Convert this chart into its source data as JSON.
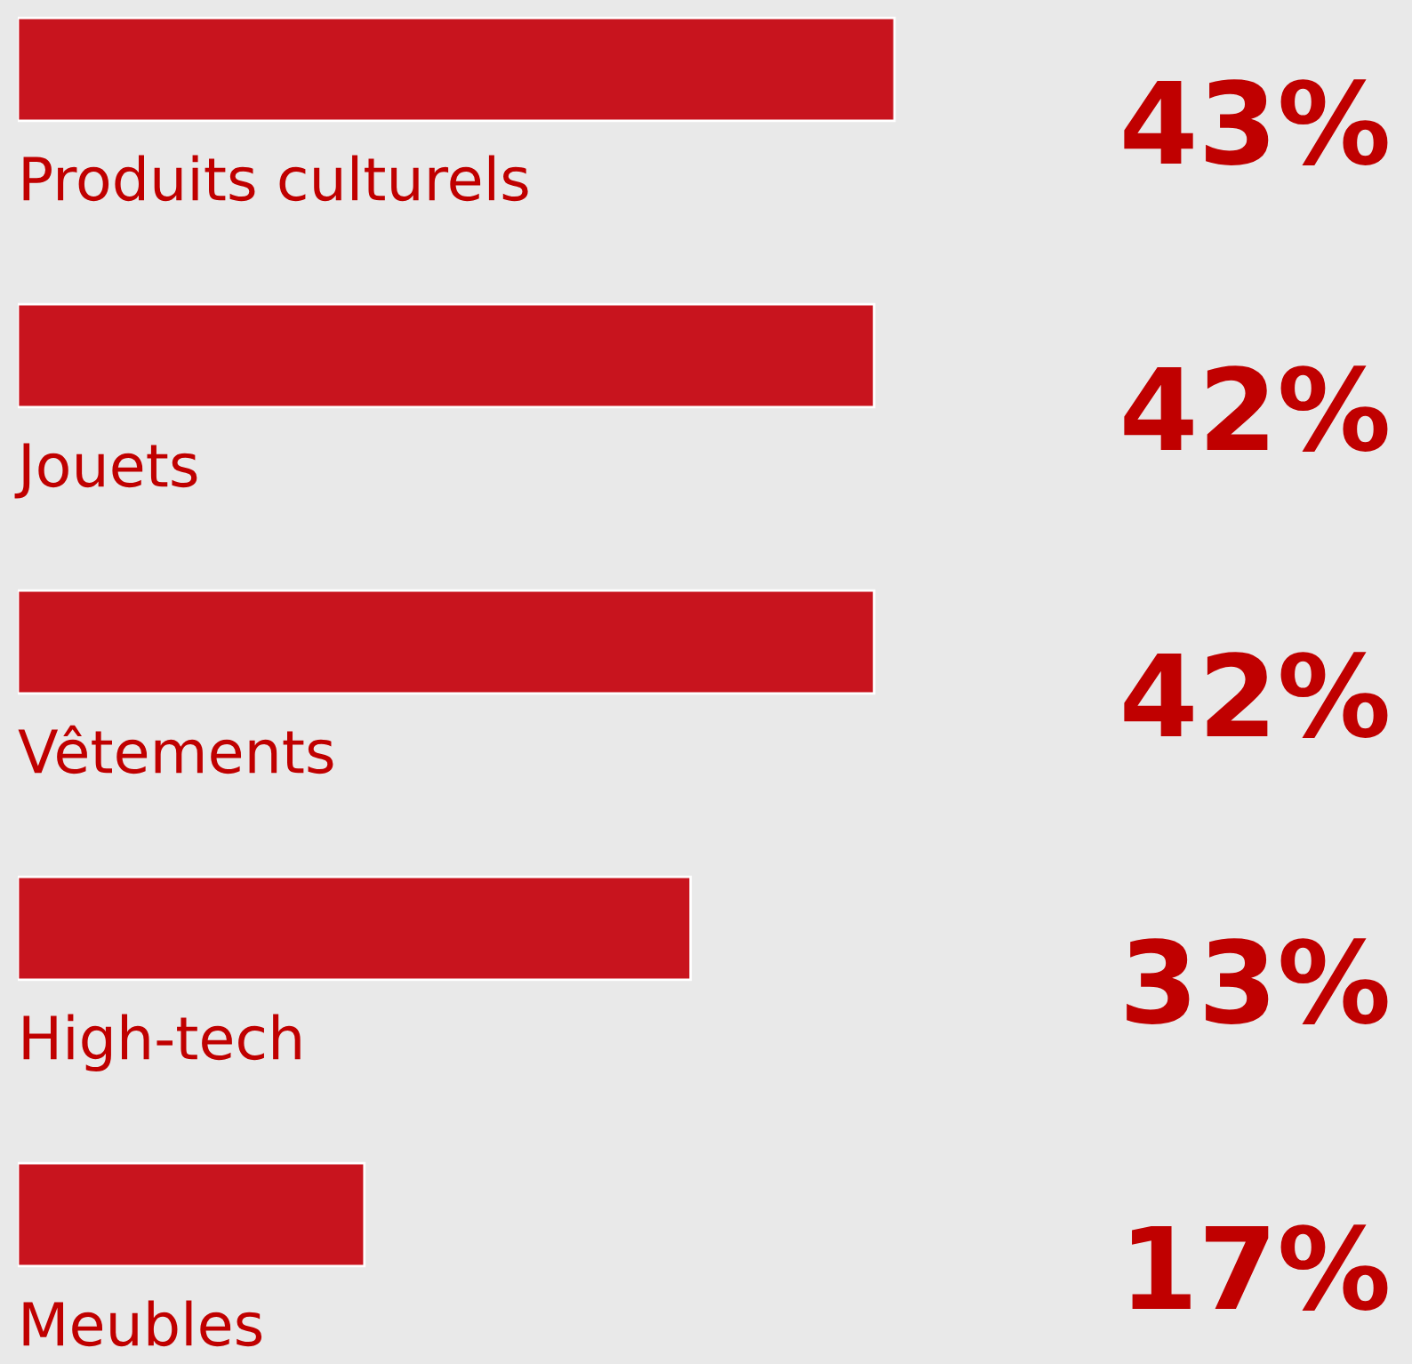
{
  "chart_data": {
    "type": "bar",
    "orientation": "horizontal",
    "categories": [
      "Produits culturels",
      "Jouets",
      "Vêtements",
      "High-tech",
      "Meubles"
    ],
    "values": [
      43,
      42,
      42,
      33,
      17
    ],
    "value_labels": [
      "43%",
      "42%",
      "42%",
      "33%",
      "17%"
    ],
    "color": "#c8141e"
  }
}
